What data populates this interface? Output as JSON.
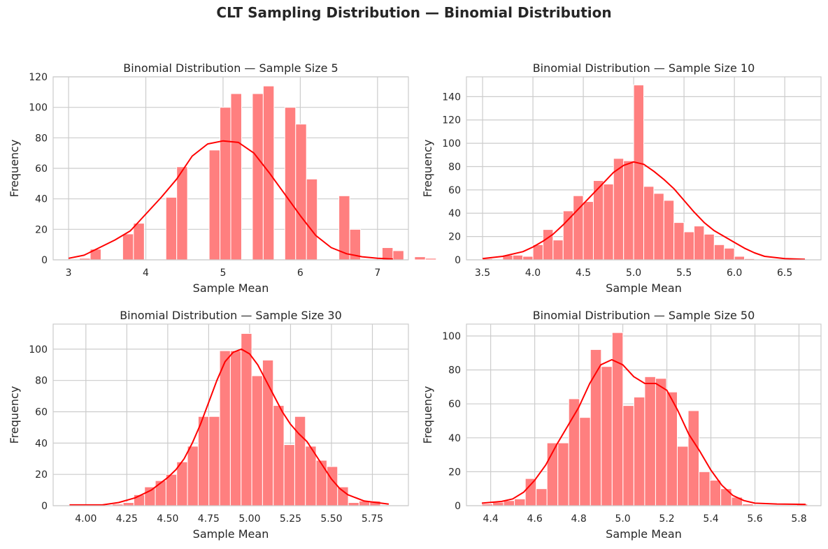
{
  "suptitle": "CLT Sampling Distribution — Binomial Distribution",
  "colors": {
    "bar": "#ff7f7f",
    "bar_edge": "#ffffff",
    "kde": "#ff0000",
    "grid": "#cccccc",
    "axes_edge": "#cccccc"
  },
  "chart_data": [
    {
      "type": "bar",
      "title": "Binomial Distribution — Sample Size 5",
      "xlabel": "Sample Mean",
      "ylabel": "Frequency",
      "xlim": [
        2.8,
        7.4
      ],
      "ylim": [
        0,
        120
      ],
      "xticks": [
        3,
        4,
        5,
        6,
        7
      ],
      "xtick_labels": [
        "3",
        "4",
        "5",
        "6",
        "7"
      ],
      "yticks": [
        0,
        20,
        40,
        60,
        80,
        100,
        120
      ],
      "grid": true,
      "bin_start": 3.0,
      "bin_width": 0.14,
      "counts": [
        0,
        1,
        7,
        0,
        0,
        17,
        24,
        0,
        0,
        41,
        61,
        0,
        0,
        72,
        100,
        109,
        0,
        109,
        114,
        0,
        100,
        89,
        53,
        0,
        0,
        42,
        20,
        0,
        0,
        8,
        6,
        0,
        2,
        1,
        0,
        0
      ],
      "kde_x": [
        3.0,
        3.2,
        3.4,
        3.6,
        3.8,
        4.0,
        4.2,
        4.4,
        4.6,
        4.8,
        5.0,
        5.2,
        5.4,
        5.6,
        5.8,
        6.0,
        6.2,
        6.4,
        6.6,
        6.8,
        7.0,
        7.2
      ],
      "kde_y": [
        1,
        3,
        8,
        13,
        19,
        30,
        41,
        53,
        68,
        76,
        78,
        77,
        70,
        57,
        43,
        29,
        16,
        8,
        4,
        2,
        1,
        0.5
      ]
    },
    {
      "type": "bar",
      "title": "Binomial Distribution — Sample Size 10",
      "xlabel": "Sample Mean",
      "ylabel": "Frequency",
      "xlim": [
        3.34,
        6.86
      ],
      "ylim": [
        0,
        157
      ],
      "xticks": [
        3.5,
        4.0,
        4.5,
        5.0,
        5.5,
        6.0,
        6.5
      ],
      "xtick_labels": [
        "3.5",
        "4.0",
        "4.5",
        "5.0",
        "5.5",
        "6.0",
        "6.5"
      ],
      "yticks": [
        0,
        20,
        40,
        60,
        80,
        100,
        120,
        140
      ],
      "grid": true,
      "bin_start": 3.5,
      "bin_width": 0.1,
      "counts": [
        1,
        0,
        4,
        4,
        3,
        13,
        26,
        17,
        42,
        55,
        50,
        68,
        65,
        87,
        85,
        150,
        63,
        57,
        51,
        32,
        24,
        29,
        22,
        13,
        10,
        3,
        1,
        0,
        0,
        0,
        0,
        0
      ],
      "kde_x": [
        3.5,
        3.7,
        3.9,
        4.0,
        4.1,
        4.2,
        4.3,
        4.4,
        4.5,
        4.6,
        4.7,
        4.8,
        4.9,
        5.0,
        5.1,
        5.2,
        5.3,
        5.4,
        5.5,
        5.6,
        5.7,
        5.8,
        5.9,
        6.0,
        6.1,
        6.2,
        6.3,
        6.5,
        6.7
      ],
      "kde_y": [
        1,
        3,
        7,
        11,
        16,
        22,
        30,
        39,
        48,
        57,
        66,
        75,
        81,
        84,
        82,
        76,
        69,
        61,
        51,
        41,
        32,
        25,
        20,
        15,
        10,
        6,
        3,
        1,
        0.5
      ]
    },
    {
      "type": "bar",
      "title": "Binomial Distribution — Sample Size 30",
      "xlabel": "Sample Mean",
      "ylabel": "Frequency",
      "xlim": [
        3.8,
        5.97
      ],
      "ylim": [
        0,
        116
      ],
      "xticks": [
        4.0,
        4.25,
        4.5,
        4.75,
        5.0,
        5.25,
        5.5,
        5.75
      ],
      "xtick_labels": [
        "4.00",
        "4.25",
        "4.50",
        "4.75",
        "5.00",
        "5.25",
        "5.50",
        "5.75"
      ],
      "yticks": [
        0,
        20,
        40,
        60,
        80,
        100
      ],
      "grid": true,
      "bin_start": 3.9,
      "bin_width": 0.0655,
      "counts": [
        0,
        0,
        0,
        0,
        1,
        2,
        7,
        12,
        16,
        20,
        28,
        38,
        57,
        57,
        99,
        99,
        110,
        83,
        93,
        64,
        39,
        57,
        38,
        29,
        25,
        12,
        2,
        3,
        3,
        0
      ],
      "kde_x": [
        3.9,
        4.1,
        4.2,
        4.3,
        4.4,
        4.5,
        4.55,
        4.6,
        4.65,
        4.7,
        4.75,
        4.8,
        4.85,
        4.9,
        4.95,
        5.0,
        5.05,
        5.1,
        5.15,
        5.2,
        5.25,
        5.3,
        5.35,
        5.4,
        5.45,
        5.5,
        5.55,
        5.6,
        5.7,
        5.85
      ],
      "kde_y": [
        0.5,
        0.5,
        2,
        5,
        10,
        18,
        23,
        30,
        40,
        52,
        66,
        80,
        92,
        98,
        100,
        97,
        90,
        80,
        70,
        60,
        52,
        46,
        41,
        33,
        25,
        17,
        11,
        7,
        3,
        1
      ]
    },
    {
      "type": "bar",
      "title": "Binomial Distribution — Sample Size 50",
      "xlabel": "Sample Mean",
      "ylabel": "Frequency",
      "xlim": [
        4.29,
        5.9
      ],
      "ylim": [
        0,
        107
      ],
      "xticks": [
        4.4,
        4.6,
        4.8,
        5.0,
        5.2,
        5.4,
        5.6,
        5.8
      ],
      "xtick_labels": [
        "4.4",
        "4.6",
        "4.8",
        "5.0",
        "5.2",
        "5.4",
        "5.6",
        "5.8"
      ],
      "yticks": [
        0,
        20,
        40,
        60,
        80,
        100
      ],
      "grid": true,
      "bin_start": 4.36,
      "bin_width": 0.0493,
      "counts": [
        1,
        2,
        3,
        4,
        16,
        10,
        37,
        37,
        63,
        52,
        92,
        82,
        102,
        59,
        64,
        76,
        75,
        67,
        35,
        56,
        20,
        15,
        10,
        5,
        1,
        0,
        0,
        0,
        0,
        1
      ],
      "kde_x": [
        4.36,
        4.45,
        4.5,
        4.55,
        4.6,
        4.65,
        4.7,
        4.75,
        4.8,
        4.85,
        4.9,
        4.95,
        5.0,
        5.05,
        5.1,
        5.15,
        5.2,
        5.25,
        5.3,
        5.35,
        5.4,
        5.45,
        5.5,
        5.55,
        5.6,
        5.7,
        5.83
      ],
      "kde_y": [
        1.5,
        2.5,
        4,
        8,
        15,
        24,
        36,
        47,
        58,
        72,
        83,
        86,
        83,
        76,
        72,
        72,
        68,
        56,
        42,
        32,
        21,
        12,
        6,
        3,
        1.5,
        1,
        0.8
      ]
    }
  ]
}
